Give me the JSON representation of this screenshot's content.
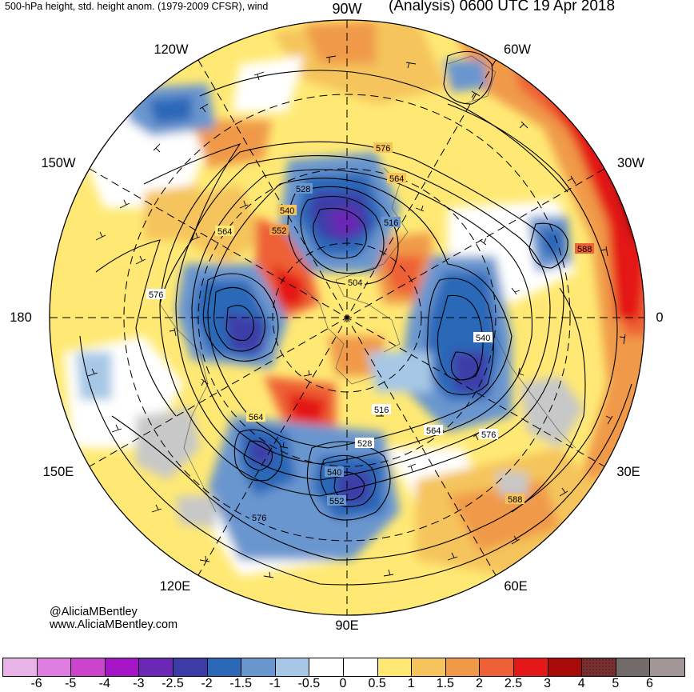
{
  "header": {
    "left_title": "500-hPa height, std. height anom. (1979-2009 CFSR), wind",
    "right_title": "(Analysis) 0600 UTC 19 Apr 2018"
  },
  "longitude_labels": {
    "top": "90W",
    "top_left": "120W",
    "top_right": "60W",
    "upper_left": "150W",
    "upper_right": "30W",
    "left": "180",
    "right": "0",
    "lower_left": "150E",
    "lower_right": "30E",
    "bottom_left": "120E",
    "bottom_right": "60E",
    "bottom": "90E"
  },
  "contour_labels": [
    "576",
    "564",
    "528",
    "540",
    "552",
    "516",
    "564",
    "576",
    "504",
    "540",
    "516",
    "564",
    "576",
    "528",
    "564",
    "540",
    "552",
    "576",
    "588",
    "588"
  ],
  "credits": {
    "handle": "@AliciaMBentley",
    "website": "www.AliciaMBentley.com"
  },
  "colorbar": {
    "colors": [
      "#e8b4e8",
      "#e07de0",
      "#cc44cc",
      "#a614c8",
      "#6a28b4",
      "#3c3ca8",
      "#2c68b8",
      "#6a96cf",
      "#a6c8e6",
      "#ffffff",
      "#ffffff",
      "#ffe974",
      "#f5c45c",
      "#f09a48",
      "#ee6036",
      "#e41818",
      "#a80a0a",
      "#7a3030",
      "#736a6a",
      "#a39696"
    ],
    "ticks": [
      "-6",
      "-5",
      "-4",
      "-3",
      "-2.5",
      "-2",
      "-1.5",
      "-1",
      "-0.5",
      "0",
      "0.5",
      "1",
      "1.5",
      "2",
      "2.5",
      "3",
      "4",
      "5",
      "6"
    ]
  },
  "anomaly_colors": {
    "strong_negative": "#3c3ca8",
    "negative": "#2c68b8",
    "weak_negative": "#a6c8e6",
    "land": "#c8c8c8",
    "weak_positive": "#ffe974",
    "positive": "#f5c45c",
    "strong_positive": "#ee6036",
    "very_strong_positive": "#e41818"
  }
}
